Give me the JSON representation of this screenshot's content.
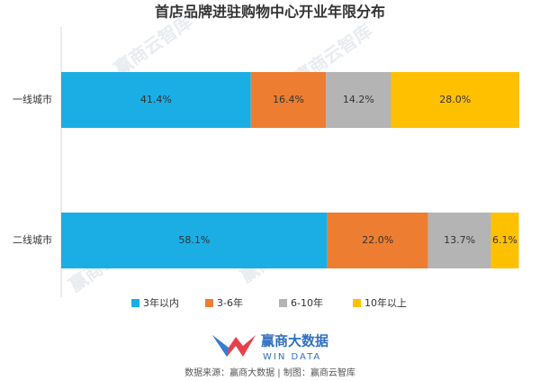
{
  "chart_data": {
    "type": "stacked_bar_horizontal",
    "title": "首店品牌进驻购物中心开业年限分布",
    "categories": [
      "一线城市",
      "二线城市"
    ],
    "series": [
      {
        "name": "3年以内",
        "color": "#1aaee5",
        "values": [
          41.4,
          58.1
        ],
        "value_labels": [
          "41.4%",
          "58.1%"
        ]
      },
      {
        "name": "3-6年",
        "color": "#ed7d31",
        "values": [
          16.4,
          22.0
        ],
        "value_labels": [
          "16.4%",
          "22.0%"
        ]
      },
      {
        "name": "6-10年",
        "color": "#b4b4b4",
        "values": [
          14.2,
          13.7
        ],
        "value_labels": [
          "14.2%",
          "13.7%"
        ]
      },
      {
        "name": "10年以上",
        "color": "#ffc000",
        "values": [
          28.0,
          6.1
        ],
        "value_labels": [
          "28.0%",
          "6.1%"
        ]
      }
    ],
    "xlim": [
      0,
      100
    ],
    "legend": "bottom"
  },
  "watermark": "赢商云智库",
  "footer": {
    "logo_text": "赢商大数据",
    "logo_subtext": "WIN DATA",
    "source": "数据来源：赢商大数据 | 制图：赢商云智库"
  }
}
